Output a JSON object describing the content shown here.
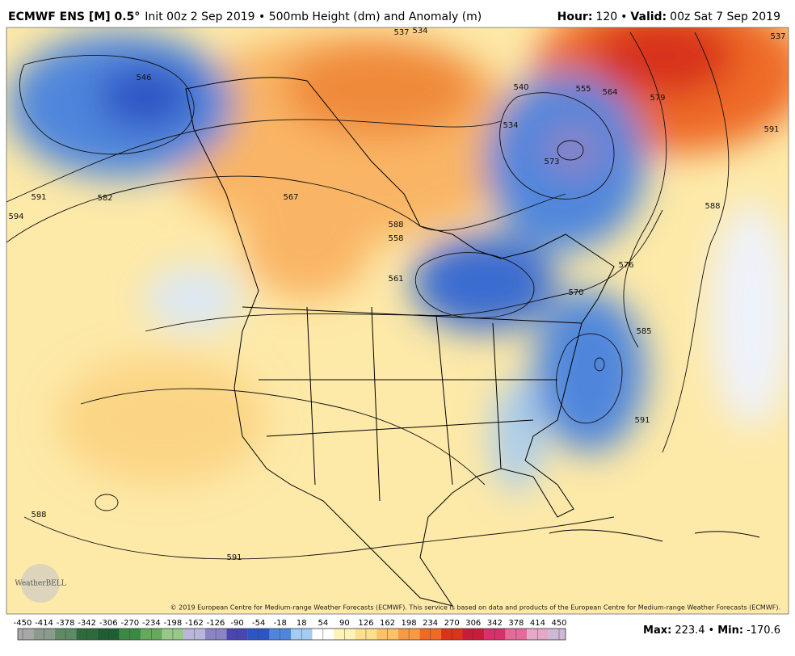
{
  "header": {
    "model": "ECMWF ENS [M] 0.5°",
    "subtitle": "Init 00z 2 Sep 2019 • 500mb Height (dm) and Anomaly (m)",
    "hour_label": "Hour:",
    "hour": "120",
    "separator": "•",
    "valid_label": "Valid:",
    "valid": "00z Sat 7 Sep 2019"
  },
  "map": {
    "contour_labels": [
      "546",
      "591",
      "594",
      "582",
      "567",
      "537",
      "534",
      "540",
      "555",
      "564",
      "579",
      "588",
      "591",
      "588",
      "576",
      "570",
      "585",
      "591",
      "588",
      "591",
      "558",
      "561",
      "573",
      "534",
      "537"
    ],
    "copyright": "© 2019 European Centre for Medium-range Weather Forecasts (ECMWF). This service is based on data and products of the European Centre for Medium-range Weather Forecasts (ECMWF).",
    "logo": "WeatherBELL"
  },
  "colorbar": {
    "ticks": [
      -450,
      -414,
      -378,
      -342,
      -306,
      -270,
      -234,
      -198,
      -162,
      -126,
      -90,
      -54,
      -18,
      18,
      54,
      90,
      126,
      162,
      198,
      234,
      270,
      306,
      342,
      378,
      414,
      450
    ],
    "colors": [
      "#a8a8a8",
      "#8c9a8c",
      "#5e8a66",
      "#2e6b3c",
      "#1f5e32",
      "#3b8a44",
      "#64a95c",
      "#97c88a",
      "#b9b6dc",
      "#8a84c6",
      "#4a46b0",
      "#2e55c4",
      "#4f86dc",
      "#a4cbf2",
      "#ffffff",
      "#fff3b8",
      "#fde08e",
      "#fbc268",
      "#f89a44",
      "#f06a26",
      "#dc3418",
      "#c81c3a",
      "#d8306a",
      "#e46a9a",
      "#e6a8c8",
      "#cdb8d8"
    ]
  },
  "stats": {
    "max_label": "Max:",
    "max": 223.4,
    "separator": "•",
    "min_label": "Min:",
    "min": -170.6
  }
}
